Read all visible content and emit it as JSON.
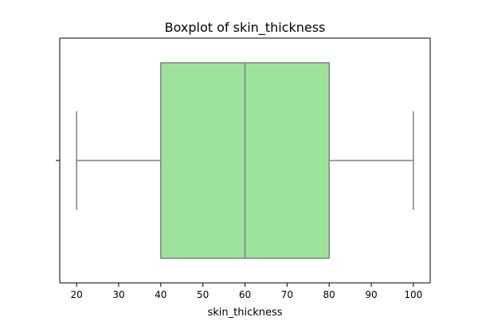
{
  "chart_data": {
    "type": "box",
    "title": "Boxplot of skin_thickness",
    "xlabel": "skin_thickness",
    "ylabel": "",
    "xlim": [
      16,
      104
    ],
    "ticks": [
      20,
      30,
      40,
      50,
      60,
      70,
      80,
      90,
      100
    ],
    "tick_labels": [
      "20",
      "30",
      "40",
      "50",
      "60",
      "70",
      "80",
      "90",
      "100"
    ],
    "box": {
      "whisker_low": 20,
      "q1": 40,
      "median": 60,
      "q3": 80,
      "whisker_high": 100
    },
    "colors": {
      "box_fill": "#9de39c",
      "box_edge": "#808080",
      "axis": "#000000"
    },
    "grid": false,
    "legend": "none"
  }
}
